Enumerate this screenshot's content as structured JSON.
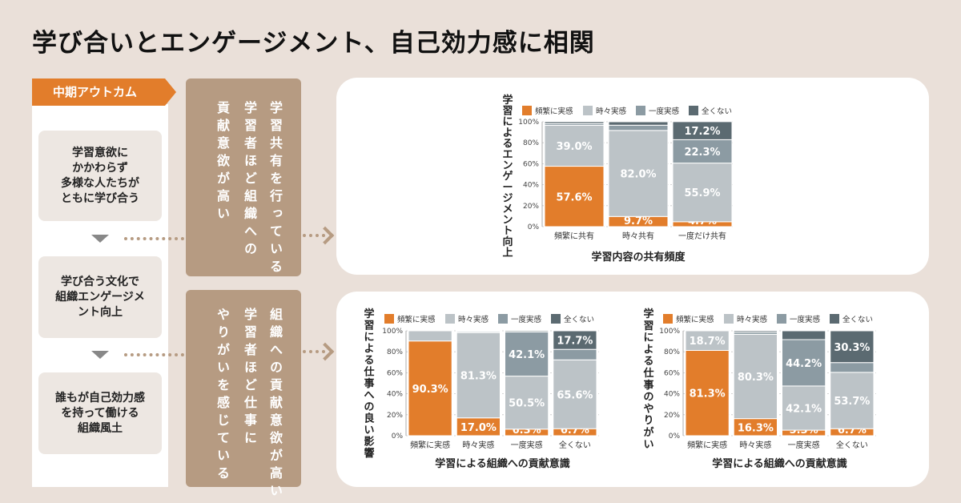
{
  "title": "学び合いとエンゲージメント、自己効力感に相関",
  "outcome_label": "中期アウトカム",
  "flow": {
    "box1": [
      "学習意欲に",
      "かかわらず",
      "多様な人たちが",
      "ともに学び合う"
    ],
    "box2": [
      "学び合う文化で",
      "組織エンゲージメ",
      "ント向上"
    ],
    "box3": [
      "誰もが自己効力感",
      "を持って働ける",
      "組織風土"
    ]
  },
  "findings": {
    "top": [
      "学習共有を行っている",
      "学習者ほど組織への",
      "貢献意欲が高い"
    ],
    "bottom": [
      "組織への貢献意欲が高い",
      "学習者ほど仕事に",
      "やりがいを感じている"
    ]
  },
  "colors": {
    "c0": "#e27d2b",
    "c1": "#bcc3c7",
    "c2": "#8c9ba3",
    "c3": "#5b6a71"
  },
  "chart_data": [
    {
      "type": "bar",
      "stacked": true,
      "title": "",
      "xlabel": "学習内容の共有頻度",
      "ylabel": "学習によるエンゲージメント向上",
      "ylim": [
        0,
        100
      ],
      "yticks": [
        "0%",
        "20%",
        "40%",
        "60%",
        "80%",
        "100%"
      ],
      "categories": [
        "頻繁に共有",
        "時々共有",
        "一度だけ共有"
      ],
      "series": [
        {
          "name": "頻繁に実感",
          "values": [
            57.6,
            9.7,
            4.7
          ],
          "labels": [
            "57.6%",
            "9.7%",
            "4.7%"
          ]
        },
        {
          "name": "時々実感",
          "values": [
            39.0,
            82.0,
            55.9
          ],
          "labels": [
            "39.0%",
            "82.0%",
            "55.9%"
          ]
        },
        {
          "name": "一度実感",
          "values": [
            1.6,
            5.0,
            22.3
          ],
          "labels": [
            "",
            "",
            "22.3%"
          ]
        },
        {
          "name": "全くない",
          "values": [
            1.8,
            3.3,
            17.2
          ],
          "labels": [
            "",
            "",
            "17.2%"
          ]
        }
      ]
    },
    {
      "type": "bar",
      "stacked": true,
      "title": "",
      "xlabel": "学習による組織への貢献意識",
      "ylabel": "学習による仕事への良い影響",
      "ylim": [
        0,
        100
      ],
      "yticks": [
        "0%",
        "20%",
        "40%",
        "60%",
        "80%",
        "100%"
      ],
      "categories": [
        "頻繁に実感",
        "時々実感",
        "一度実感",
        "全くない"
      ],
      "series": [
        {
          "name": "頻繁に実感",
          "values": [
            90.3,
            17.0,
            6.3,
            6.7
          ],
          "labels": [
            "90.3%",
            "17.0%",
            "6.3%",
            "6.7%"
          ]
        },
        {
          "name": "時々実感",
          "values": [
            9.7,
            81.3,
            50.5,
            65.6
          ],
          "labels": [
            "",
            "81.3%",
            "50.5%",
            "65.6%"
          ]
        },
        {
          "name": "一度実感",
          "values": [
            0,
            1.0,
            42.1,
            10.0
          ],
          "labels": [
            "",
            "",
            "42.1%",
            ""
          ]
        },
        {
          "name": "全くない",
          "values": [
            0,
            0.7,
            1.1,
            17.7
          ],
          "labels": [
            "",
            "",
            "",
            "17.7%"
          ]
        }
      ]
    },
    {
      "type": "bar",
      "stacked": true,
      "title": "",
      "xlabel": "学習による組織への貢献意識",
      "ylabel": "学習による仕事のやりがい",
      "ylim": [
        0,
        100
      ],
      "yticks": [
        "0%",
        "20%",
        "40%",
        "60%",
        "80%",
        "100%"
      ],
      "categories": [
        "頻繁に実感",
        "時々実感",
        "一度実感",
        "全くない"
      ],
      "series": [
        {
          "name": "頻繁に実感",
          "values": [
            81.3,
            16.3,
            5.3,
            6.7
          ],
          "labels": [
            "81.3%",
            "16.3%",
            "5.3%",
            "6.7%"
          ]
        },
        {
          "name": "時々実感",
          "values": [
            18.7,
            80.3,
            42.1,
            53.7
          ],
          "labels": [
            "18.7%",
            "80.3%",
            "42.1%",
            "53.7%"
          ]
        },
        {
          "name": "一度実感",
          "values": [
            0,
            2.0,
            44.2,
            9.3
          ],
          "labels": [
            "",
            "",
            "44.2%",
            ""
          ]
        },
        {
          "name": "全くない",
          "values": [
            0,
            1.4,
            8.4,
            30.3
          ],
          "labels": [
            "",
            "",
            "",
            "30.3%"
          ]
        }
      ]
    }
  ]
}
